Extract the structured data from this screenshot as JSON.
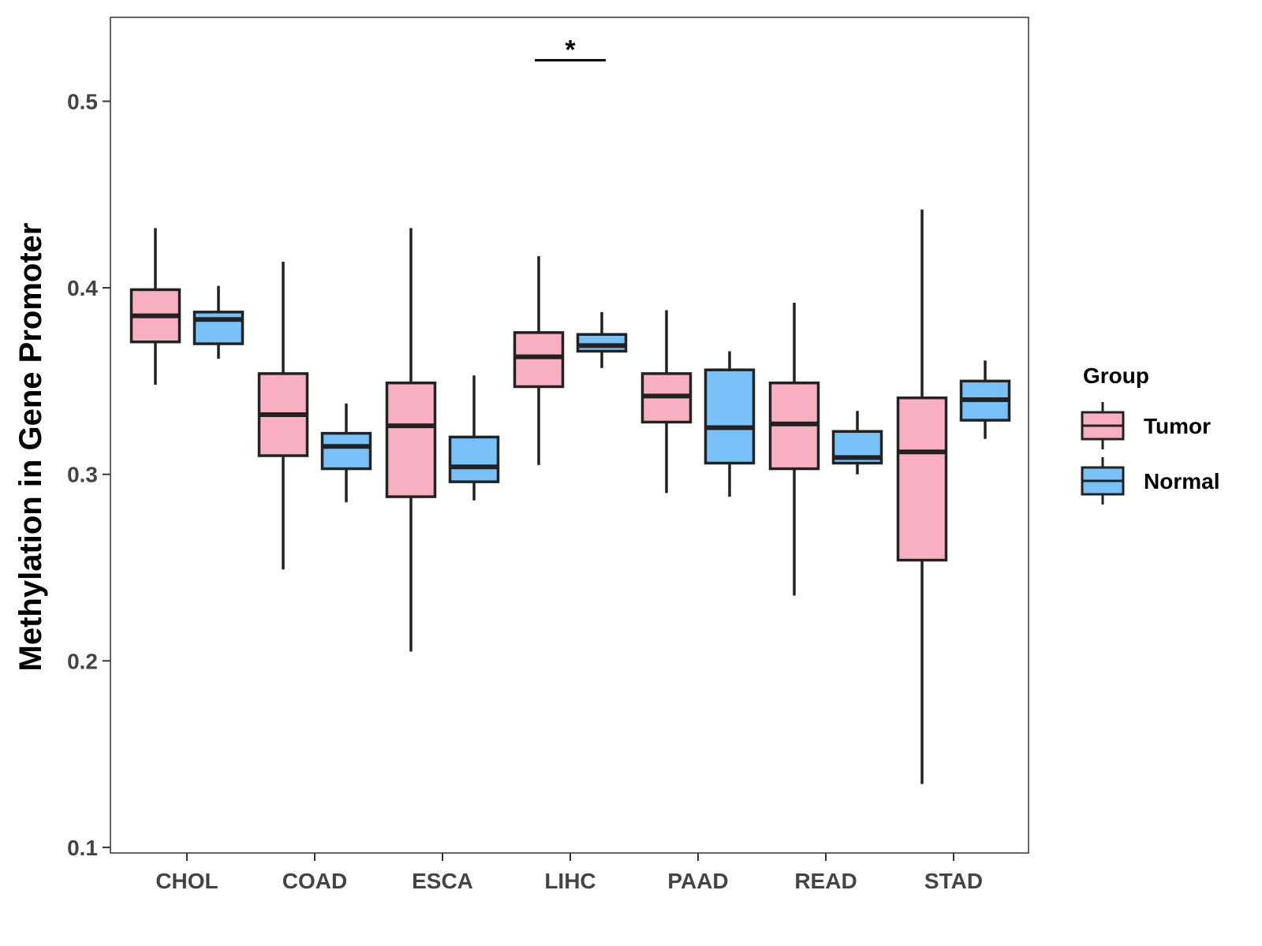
{
  "chart_data": {
    "type": "boxplot",
    "title": "",
    "xlabel": "",
    "ylabel": "Methylation in Gene Promoter",
    "ylim": [
      0.097,
      0.545
    ],
    "yticks": [
      0.1,
      0.2,
      0.3,
      0.4,
      0.5
    ],
    "ytick_labels": [
      "0.1",
      "0.2",
      "0.3",
      "0.4",
      "0.5"
    ],
    "grid": false,
    "categories": [
      "CHOL",
      "COAD",
      "ESCA",
      "LIHC",
      "PAAD",
      "READ",
      "STAD"
    ],
    "series": [
      {
        "name": "Tumor",
        "color": "#F9AFC2",
        "boxes": [
          {
            "min": 0.348,
            "q1": 0.371,
            "median": 0.385,
            "q3": 0.399,
            "max": 0.432
          },
          {
            "min": 0.249,
            "q1": 0.31,
            "median": 0.332,
            "q3": 0.354,
            "max": 0.414
          },
          {
            "min": 0.205,
            "q1": 0.288,
            "median": 0.326,
            "q3": 0.349,
            "max": 0.432
          },
          {
            "min": 0.305,
            "q1": 0.347,
            "median": 0.363,
            "q3": 0.376,
            "max": 0.417
          },
          {
            "min": 0.29,
            "q1": 0.328,
            "median": 0.342,
            "q3": 0.354,
            "max": 0.388
          },
          {
            "min": 0.235,
            "q1": 0.303,
            "median": 0.327,
            "q3": 0.349,
            "max": 0.392
          },
          {
            "min": 0.134,
            "q1": 0.254,
            "median": 0.312,
            "q3": 0.341,
            "max": 0.442
          }
        ]
      },
      {
        "name": "Normal",
        "color": "#78C1F8",
        "boxes": [
          {
            "min": 0.362,
            "q1": 0.37,
            "median": 0.383,
            "q3": 0.387,
            "max": 0.401
          },
          {
            "min": 0.285,
            "q1": 0.303,
            "median": 0.315,
            "q3": 0.322,
            "max": 0.338
          },
          {
            "min": 0.286,
            "q1": 0.296,
            "median": 0.304,
            "q3": 0.32,
            "max": 0.353
          },
          {
            "min": 0.357,
            "q1": 0.366,
            "median": 0.369,
            "q3": 0.375,
            "max": 0.387
          },
          {
            "min": 0.288,
            "q1": 0.306,
            "median": 0.325,
            "q3": 0.356,
            "max": 0.366
          },
          {
            "min": 0.3,
            "q1": 0.306,
            "median": 0.309,
            "q3": 0.323,
            "max": 0.334
          },
          {
            "min": 0.319,
            "q1": 0.329,
            "median": 0.34,
            "q3": 0.35,
            "max": 0.361
          }
        ]
      }
    ],
    "annotations": [
      {
        "text": "*",
        "category": "LIHC",
        "y": 0.522
      }
    ],
    "legend": {
      "title": "Group",
      "position": "right",
      "entries": [
        "Tumor",
        "Normal"
      ]
    }
  }
}
